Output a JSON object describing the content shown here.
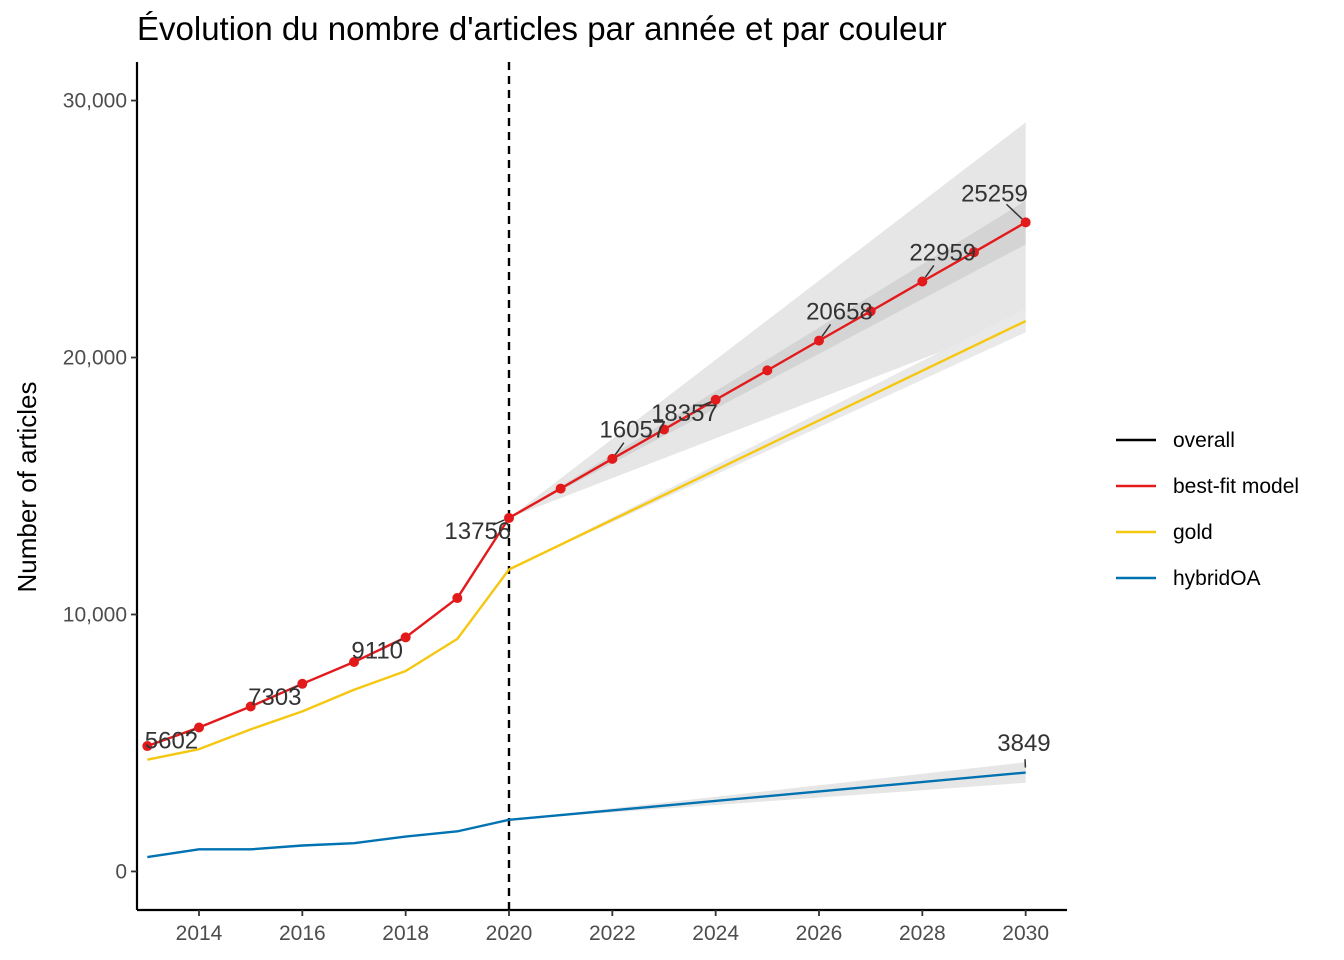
{
  "chart_data": {
    "type": "line",
    "title": "Évolution du nombre d'articles par année et par couleur",
    "ylabel": "Number of articles",
    "xlabel": "",
    "xlim": [
      2012.8,
      2030.8
    ],
    "ylim": [
      -1500,
      31500
    ],
    "x_ticks": [
      2014,
      2016,
      2018,
      2020,
      2022,
      2024,
      2026,
      2028,
      2030
    ],
    "x_tick_labels": [
      "2014",
      "2016",
      "2018",
      "2020",
      "2022",
      "2024",
      "2026",
      "2028",
      "2030"
    ],
    "y_ticks": [
      0,
      10000,
      20000,
      30000
    ],
    "y_tick_labels": [
      "0",
      "10,000",
      "20,000",
      "30,000"
    ],
    "vline_x": 2020,
    "grid": false,
    "legend_position": "right",
    "legend": [
      {
        "name": "overall",
        "color": "#000000"
      },
      {
        "name": "best-fit model",
        "color": "#e31a1c"
      },
      {
        "name": "gold",
        "color": "#f5c710"
      },
      {
        "name": "hybridOA",
        "color": "#0072b2"
      }
    ],
    "series": [
      {
        "name": "best-fit model",
        "color": "#e31a1c",
        "markers": true,
        "x": [
          2013,
          2014,
          2015,
          2016,
          2017,
          2018,
          2019,
          2020,
          2021,
          2022,
          2023,
          2024,
          2025,
          2026,
          2027,
          2028,
          2029,
          2030
        ],
        "y": [
          4880,
          5602,
          6420,
          7303,
          8150,
          9110,
          10640,
          13756,
          14900,
          16057,
          17200,
          18357,
          19500,
          20658,
          21800,
          22959,
          24100,
          25259
        ]
      },
      {
        "name": "gold",
        "color": "#f5c710",
        "markers": false,
        "x": [
          2013,
          2014,
          2015,
          2016,
          2017,
          2018,
          2019,
          2020,
          2030
        ],
        "y": [
          4350,
          4760,
          5530,
          6230,
          7070,
          7800,
          9050,
          11750,
          21420
        ]
      },
      {
        "name": "hybridOA",
        "color": "#0072b2",
        "markers": false,
        "x": [
          2013,
          2014,
          2015,
          2016,
          2017,
          2018,
          2019,
          2020,
          2030
        ],
        "y": [
          560,
          860,
          860,
          1010,
          1100,
          1360,
          1560,
          2010,
          3849
        ]
      }
    ],
    "ribbons": [
      {
        "name": "best-fit model outer interval",
        "color": "#e6e6e6",
        "x": [
          2020,
          2030
        ],
        "lower": [
          13756,
          21500
        ],
        "upper": [
          13756,
          29150
        ]
      },
      {
        "name": "best-fit model inner interval",
        "color": "#d4d4d4",
        "x": [
          2020,
          2030
        ],
        "lower": [
          13756,
          24400
        ],
        "upper": [
          13756,
          26100
        ]
      },
      {
        "name": "gold interval",
        "color": "#e9e9e9",
        "x": [
          2020,
          2030
        ],
        "lower": [
          11750,
          20980
        ],
        "upper": [
          11750,
          21900
        ]
      },
      {
        "name": "hybridOA interval",
        "color": "#e6e6e6",
        "x": [
          2020,
          2030
        ],
        "lower": [
          2010,
          3450
        ],
        "upper": [
          2010,
          4250
        ]
      }
    ],
    "annotations": [
      {
        "text": "5602",
        "x": 2014,
        "y": 5602,
        "lx": 2012.95,
        "ly": 4780
      },
      {
        "text": "7303",
        "x": 2016,
        "y": 7303,
        "lx": 2014.95,
        "ly": 6480
      },
      {
        "text": "9110",
        "x": 2018,
        "y": 9110,
        "lx": 2016.95,
        "ly": 8290
      },
      {
        "text": "13756",
        "x": 2020,
        "y": 13756,
        "lx": 2018.75,
        "ly": 12930
      },
      {
        "text": "16057",
        "x": 2022,
        "y": 16057,
        "lx": 2021.75,
        "ly": 16880
      },
      {
        "text": "18357",
        "x": 2024,
        "y": 18357,
        "lx": 2022.75,
        "ly": 17530
      },
      {
        "text": "20658",
        "x": 2026,
        "y": 20658,
        "lx": 2025.75,
        "ly": 21480
      },
      {
        "text": "22959",
        "x": 2028,
        "y": 22959,
        "lx": 2027.75,
        "ly": 23780
      },
      {
        "text": "25259",
        "x": 2030,
        "y": 25259,
        "lx": 2028.75,
        "ly": 26080
      },
      {
        "text": "3849",
        "x": 2030,
        "y": 3849,
        "lx": 2029.45,
        "ly": 4680
      }
    ]
  }
}
